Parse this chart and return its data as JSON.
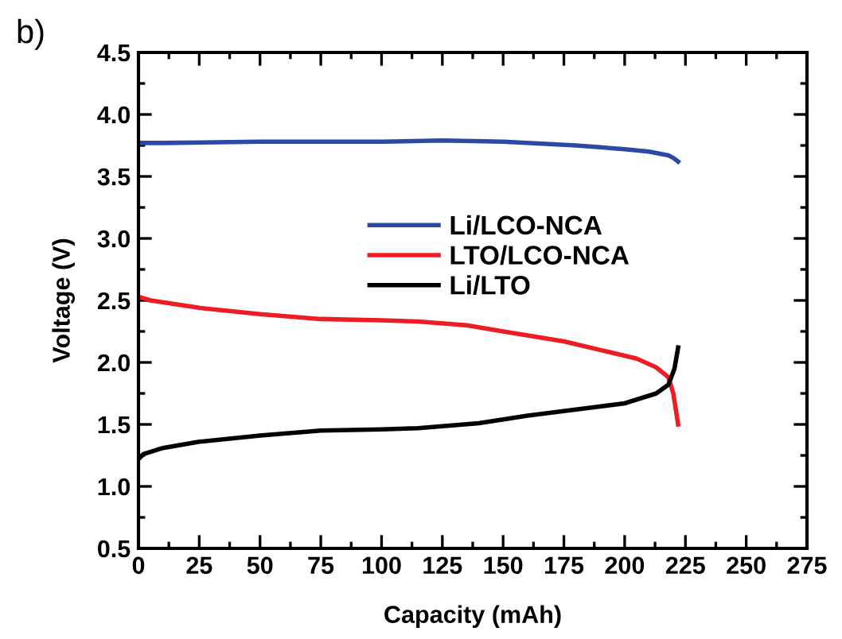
{
  "chart_data": {
    "type": "line",
    "xlabel": "Capacity (mAh)",
    "ylabel": "Voltage (V)",
    "annotations": [
      "b)"
    ],
    "xlim": [
      0,
      275
    ],
    "xticks": [
      0,
      25,
      50,
      75,
      100,
      125,
      150,
      175,
      200,
      225,
      250,
      275
    ],
    "ylim": [
      0.5,
      4.5
    ],
    "yticks": [
      0.5,
      {
        "value": 1,
        "label": "1.0"
      },
      1.5,
      {
        "value": 2,
        "label": "2.0"
      },
      2.5,
      {
        "value": 3,
        "label": "3.0"
      },
      3.5,
      {
        "value": 4,
        "label": "4.0"
      },
      4.5
    ],
    "grid": false,
    "legend": "center right",
    "marker": "none",
    "line_style": "solid",
    "series": [
      {
        "name": "Li/LCO-NCA",
        "color": "#2b4aa6",
        "x": [
          0,
          10,
          50,
          100,
          125,
          150,
          180,
          200,
          210,
          218,
          220,
          222
        ],
        "values": [
          3.77,
          3.77,
          3.78,
          3.78,
          3.79,
          3.78,
          3.75,
          3.72,
          3.7,
          3.67,
          3.65,
          3.62
        ]
      },
      {
        "name": "LTO/LCO-NCA",
        "color": "#ee1c23",
        "x": [
          0,
          5,
          25,
          50,
          75,
          100,
          115,
          135,
          150,
          175,
          190,
          205,
          213,
          218,
          220,
          222
        ],
        "values": [
          2.53,
          2.5,
          2.44,
          2.39,
          2.35,
          2.34,
          2.33,
          2.3,
          2.25,
          2.17,
          2.1,
          2.03,
          1.96,
          1.88,
          1.75,
          1.5
        ]
      },
      {
        "name": "Li/LTO",
        "color": "#000000",
        "x": [
          0,
          2,
          10,
          25,
          50,
          75,
          100,
          115,
          140,
          160,
          180,
          200,
          213,
          218,
          220.5,
          222
        ],
        "values": [
          1.22,
          1.26,
          1.31,
          1.36,
          1.41,
          1.45,
          1.46,
          1.47,
          1.51,
          1.57,
          1.62,
          1.67,
          1.75,
          1.82,
          1.95,
          2.12
        ]
      }
    ]
  }
}
